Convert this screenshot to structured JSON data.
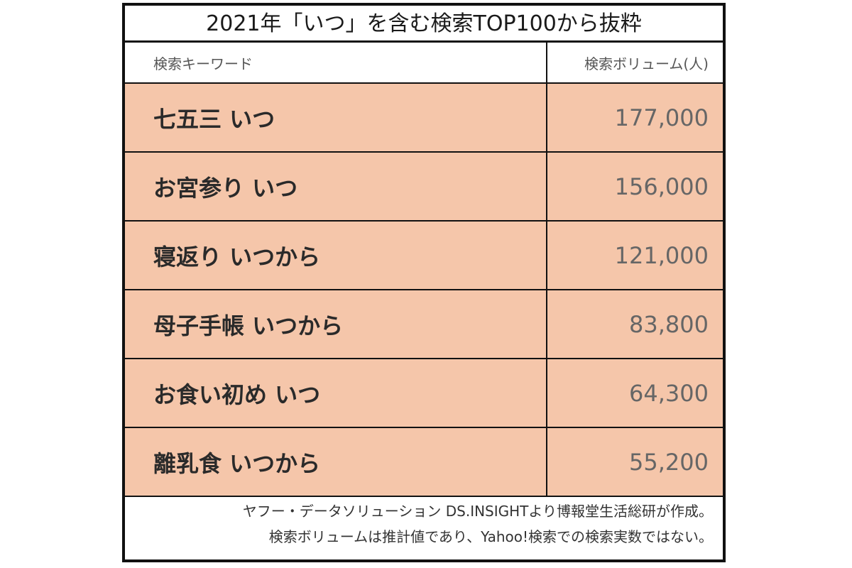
{
  "chart_data": {
    "type": "table",
    "title": "2021年「いつ」を含む検索TOP100から抜粋",
    "columns": [
      "検索キーワード",
      "検索ボリューム(人)"
    ],
    "rows": [
      {
        "keyword": "七五三 いつ",
        "volume": "177,000"
      },
      {
        "keyword": "お宮参り いつ",
        "volume": "156,000"
      },
      {
        "keyword": "寝返り いつから",
        "volume": "121,000"
      },
      {
        "keyword": "母子手帳 いつから",
        "volume": "83,800"
      },
      {
        "keyword": "お食い初め いつ",
        "volume": "64,300"
      },
      {
        "keyword": "離乳食 いつから",
        "volume": "55,200"
      }
    ],
    "values": [
      177000,
      156000,
      121000,
      83800,
      64300,
      55200
    ]
  },
  "notes": [
    "ヤフー・データソリューション DS.INSIGHTより博報堂生活総研が作成。",
    "検索ボリュームは推計値であり、Yahoo!検索での検索実数ではない。"
  ],
  "colors": {
    "row_fill": "#f5c6aa",
    "border": "#111111",
    "header_fill": "#ffffff"
  }
}
